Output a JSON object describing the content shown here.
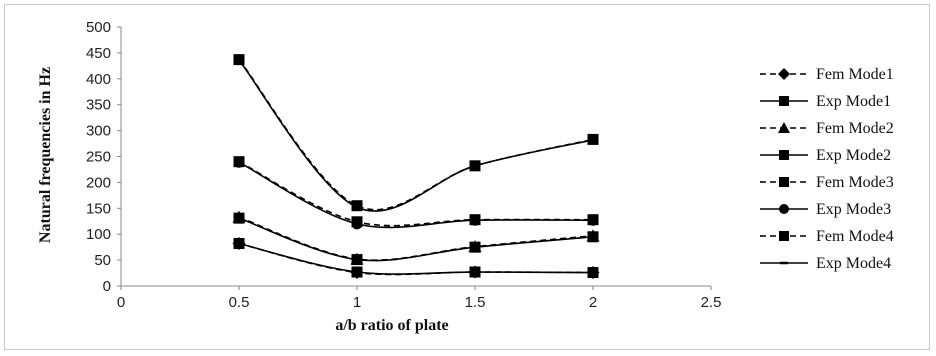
{
  "chart_data": {
    "type": "line",
    "xlabel": "a/b ratio  of plate",
    "ylabel": "Natural frequencies in Hz",
    "xlim": [
      0,
      2.5
    ],
    "ylim": [
      0,
      500
    ],
    "x_ticks": [
      "0",
      "0.5",
      "1",
      "1.5",
      "2",
      "2.5"
    ],
    "y_ticks": [
      "0",
      "50",
      "100",
      "150",
      "200",
      "250",
      "300",
      "350",
      "400",
      "450",
      "500"
    ],
    "grid": false,
    "legend_position": "right",
    "x": [
      0.5,
      1,
      1.5,
      2
    ],
    "series": [
      {
        "name": "Fem Mode1",
        "values": [
          82,
          26,
          27,
          26
        ],
        "dash": "dashed",
        "marker": "diamond"
      },
      {
        "name": "Exp  Mode1",
        "values": [
          82,
          27,
          27,
          26
        ],
        "dash": "solid",
        "marker": "square"
      },
      {
        "name": "Fem Mode2",
        "values": [
          133,
          52,
          76,
          97
        ],
        "dash": "dashed",
        "marker": "triangle"
      },
      {
        "name": "Exp  Mode2",
        "values": [
          131,
          51,
          75,
          95
        ],
        "dash": "solid",
        "marker": "square"
      },
      {
        "name": "Fem Mode3",
        "values": [
          240,
          124,
          128,
          128
        ],
        "dash": "dashed",
        "marker": "square"
      },
      {
        "name": "Exp Mode3",
        "values": [
          239,
          120,
          127,
          127
        ],
        "dash": "solid",
        "marker": "circle"
      },
      {
        "name": "Fem Mode4",
        "values": [
          437,
          155,
          232,
          283
        ],
        "dash": "dashed",
        "marker": "square"
      },
      {
        "name": "Exp Mode4",
        "values": [
          436,
          152,
          232,
          282
        ],
        "dash": "solid",
        "marker": "dash"
      }
    ],
    "colors": {
      "line": "#000000",
      "frame": "#c8c8c8",
      "axis": "#888888"
    }
  }
}
